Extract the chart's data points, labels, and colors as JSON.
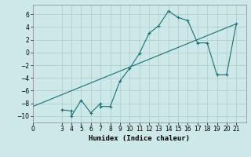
{
  "xlabel": "Humidex (Indice chaleur)",
  "ylabel": "",
  "bg_color": "#cce8e8",
  "grid_color": "#b0c8c8",
  "line_color": "#1a7070",
  "curve_x": [
    3,
    4,
    4,
    5,
    6,
    7,
    7,
    8,
    9,
    10,
    11,
    12,
    13,
    14,
    15,
    16,
    17,
    18,
    19,
    20,
    21
  ],
  "curve_y": [
    -9.0,
    -9.2,
    -10.0,
    -7.5,
    -9.5,
    -8.0,
    -8.5,
    -8.5,
    -4.5,
    -2.5,
    -0.2,
    3.0,
    4.2,
    6.5,
    5.5,
    5.0,
    1.5,
    1.5,
    -3.5,
    -3.5,
    4.5
  ],
  "trend_x": [
    0,
    21
  ],
  "trend_y": [
    -8.5,
    4.5
  ],
  "xlim": [
    0,
    22
  ],
  "ylim": [
    -11,
    7.5
  ],
  "yticks": [
    -10,
    -8,
    -6,
    -4,
    -2,
    0,
    2,
    4,
    6
  ],
  "xticks": [
    0,
    3,
    4,
    5,
    6,
    7,
    8,
    9,
    10,
    11,
    12,
    13,
    14,
    15,
    16,
    17,
    18,
    19,
    20,
    21
  ],
  "tick_fontsize": 5.5,
  "label_fontsize": 6.5
}
